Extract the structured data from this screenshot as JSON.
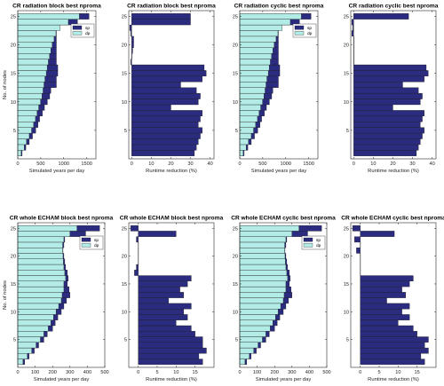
{
  "colors": {
    "sp": "#2b2b7f",
    "dp": "#b3ece6",
    "edge": "#1a1a1a"
  },
  "legend": [
    "sp",
    "dp"
  ],
  "chart_data": [
    {
      "type": "bar",
      "orientation": "horizontal",
      "stacked": "overlay",
      "title": "CR radiation block best nproma",
      "xlabel": "Simulated years per day",
      "ylabel": "No. of nodes",
      "xlim": [
        0,
        1700
      ],
      "xticks": [
        0,
        500,
        1000,
        1500
      ],
      "ylim": [
        0,
        26
      ],
      "yticks": [
        5,
        10,
        15,
        20,
        25
      ],
      "nodes": [
        1,
        2,
        3,
        4,
        5,
        6,
        7,
        8,
        9,
        10,
        11,
        12,
        13,
        14,
        15,
        16,
        17,
        18,
        19,
        20,
        21,
        22,
        23,
        24,
        25
      ],
      "series": [
        {
          "name": "sp",
          "values": [
            95,
            175,
            250,
            320,
            390,
            440,
            475,
            535,
            580,
            645,
            695,
            720,
            840,
            840,
            870,
            870,
            840,
            840,
            840,
            840,
            840,
            840,
            840,
            1300,
            1550
          ]
        },
        {
          "name": "dp",
          "values": [
            75,
            140,
            190,
            250,
            300,
            345,
            385,
            420,
            455,
            495,
            525,
            550,
            570,
            590,
            620,
            640,
            665,
            690,
            720,
            750,
            790,
            830,
            920,
            1100,
            1340
          ]
        }
      ]
    },
    {
      "type": "bar",
      "orientation": "horizontal",
      "title": "CR radiation block best nproma",
      "xlabel": "Runtime reduction (%)",
      "ylabel": "",
      "xlim": [
        -1.5,
        42
      ],
      "xticks": [
        0,
        10,
        20,
        30,
        40
      ],
      "ylim": [
        0,
        26
      ],
      "yticks": [
        5,
        10,
        15,
        20,
        25
      ],
      "nodes": [
        1,
        2,
        3,
        4,
        5,
        6,
        7,
        8,
        9,
        10,
        11,
        12,
        13,
        14,
        15,
        16,
        17,
        18,
        19,
        20,
        21,
        22,
        23,
        24,
        25
      ],
      "values": [
        32,
        33,
        34,
        35,
        36,
        34,
        35,
        36,
        20,
        34,
        35,
        33,
        25,
        36,
        38,
        37,
        -0.5,
        0,
        0.5,
        1,
        1,
        -0.5,
        -1,
        30,
        30
      ]
    },
    {
      "type": "bar",
      "orientation": "horizontal",
      "stacked": "overlay",
      "title": "CR radiation cyclic best nproma",
      "xlabel": "Simulated years per day",
      "ylabel": "",
      "xlim": [
        0,
        1700
      ],
      "xticks": [
        0,
        500,
        1000,
        1500
      ],
      "ylim": [
        0,
        26
      ],
      "yticks": [
        5,
        10,
        15,
        20,
        25
      ],
      "nodes": [
        1,
        2,
        3,
        4,
        5,
        6,
        7,
        8,
        9,
        10,
        11,
        12,
        13,
        14,
        15,
        16,
        17,
        18,
        19,
        20,
        21,
        22,
        23,
        24,
        25
      ],
      "series": [
        {
          "name": "sp",
          "values": [
            95,
            175,
            250,
            320,
            390,
            440,
            475,
            535,
            580,
            645,
            695,
            720,
            840,
            840,
            870,
            870,
            840,
            840,
            840,
            840,
            840,
            840,
            840,
            1300,
            1550
          ]
        },
        {
          "name": "dp",
          "values": [
            75,
            140,
            190,
            250,
            300,
            345,
            385,
            420,
            455,
            495,
            525,
            550,
            570,
            590,
            620,
            640,
            665,
            690,
            720,
            750,
            790,
            830,
            920,
            1100,
            1340
          ]
        }
      ]
    },
    {
      "type": "bar",
      "orientation": "horizontal",
      "title": "CR radiation cyclic best nproma",
      "xlabel": "Runtime reduction (%)",
      "ylabel": "",
      "xlim": [
        -1.5,
        42
      ],
      "xticks": [
        0,
        10,
        20,
        30,
        40
      ],
      "ylim": [
        0,
        26
      ],
      "yticks": [
        5,
        10,
        15,
        20,
        25
      ],
      "nodes": [
        1,
        2,
        3,
        4,
        5,
        6,
        7,
        8,
        9,
        10,
        11,
        12,
        13,
        14,
        15,
        16,
        17,
        18,
        19,
        20,
        21,
        22,
        23,
        24,
        25
      ],
      "values": [
        32,
        33,
        34,
        35,
        36,
        34,
        35,
        36,
        20,
        34,
        35,
        33,
        25,
        36,
        38,
        37,
        0,
        0,
        0,
        0,
        0,
        -1,
        -0.5,
        -1,
        28
      ]
    },
    {
      "type": "bar",
      "orientation": "horizontal",
      "stacked": "overlay",
      "title": "CR whole ECHAM block best nproma",
      "xlabel": "Simulated years per day",
      "ylabel": "No. of nodes",
      "xlim": [
        0,
        500
      ],
      "xticks": [
        0,
        100,
        200,
        300,
        400,
        500
      ],
      "ylim": [
        0,
        26
      ],
      "yticks": [
        5,
        10,
        15,
        20,
        25
      ],
      "nodes": [
        1,
        2,
        3,
        4,
        5,
        6,
        7,
        8,
        9,
        10,
        11,
        12,
        13,
        14,
        15,
        16,
        17,
        18,
        19,
        20,
        21,
        22,
        23,
        24,
        25
      ],
      "series": [
        {
          "name": "sp",
          "values": [
            40,
            65,
            95,
            120,
            150,
            170,
            200,
            215,
            230,
            250,
            265,
            280,
            300,
            295,
            285,
            290,
            285,
            275,
            270,
            265,
            260,
            265,
            270,
            390,
            470
          ]
        },
        {
          "name": "dp",
          "values": [
            30,
            55,
            80,
            105,
            130,
            150,
            175,
            190,
            205,
            220,
            235,
            250,
            255,
            265,
            265,
            275,
            270,
            265,
            262,
            260,
            258,
            258,
            265,
            300,
            340
          ]
        }
      ]
    },
    {
      "type": "bar",
      "orientation": "horizontal",
      "title": "CR whole ECHAM block best nproma",
      "xlabel": "Runtime reduction (%)",
      "ylabel": "",
      "xlim": [
        -2.5,
        20
      ],
      "xticks": [
        0,
        5,
        10,
        15
      ],
      "ylim": [
        0,
        26
      ],
      "yticks": [
        5,
        10,
        15,
        20,
        25
      ],
      "nodes": [
        1,
        2,
        3,
        4,
        5,
        6,
        7,
        8,
        9,
        10,
        11,
        12,
        13,
        14,
        15,
        16,
        17,
        18,
        19,
        20,
        21,
        22,
        23,
        24,
        25
      ],
      "values": [
        17,
        16,
        18,
        17,
        17,
        15,
        14,
        10,
        13,
        12,
        14,
        8,
        12,
        11,
        13,
        14,
        -1,
        -0.5,
        0,
        0,
        0,
        0,
        -0.5,
        10,
        -2
      ]
    },
    {
      "type": "bar",
      "orientation": "horizontal",
      "stacked": "overlay",
      "title": "CR whole ECHAM cyclic best nproma",
      "xlabel": "Simulated years per day",
      "ylabel": "",
      "xlim": [
        0,
        500
      ],
      "xticks": [
        0,
        100,
        200,
        300,
        400,
        500
      ],
      "ylim": [
        0,
        26
      ],
      "yticks": [
        5,
        10,
        15,
        20,
        25
      ],
      "nodes": [
        1,
        2,
        3,
        4,
        5,
        6,
        7,
        8,
        9,
        10,
        11,
        12,
        13,
        14,
        15,
        16,
        17,
        18,
        19,
        20,
        21,
        22,
        23,
        24,
        25
      ],
      "series": [
        {
          "name": "sp",
          "values": [
            40,
            65,
            95,
            120,
            150,
            170,
            200,
            215,
            230,
            250,
            265,
            280,
            300,
            295,
            285,
            290,
            285,
            275,
            270,
            265,
            260,
            265,
            270,
            390,
            470
          ]
        },
        {
          "name": "dp",
          "values": [
            30,
            55,
            80,
            105,
            130,
            150,
            175,
            190,
            205,
            220,
            235,
            250,
            255,
            265,
            265,
            275,
            270,
            265,
            262,
            260,
            258,
            258,
            265,
            300,
            340
          ]
        }
      ]
    },
    {
      "type": "bar",
      "orientation": "horizontal",
      "title": "CR whole ECHAM cyclic best nproma",
      "xlabel": "Runtime reduction (%)",
      "ylabel": "",
      "xlim": [
        -2.5,
        20
      ],
      "xticks": [
        0,
        5,
        10,
        15
      ],
      "ylim": [
        0,
        26
      ],
      "yticks": [
        5,
        10,
        15,
        20,
        25
      ],
      "nodes": [
        1,
        2,
        3,
        4,
        5,
        6,
        7,
        8,
        9,
        10,
        11,
        12,
        13,
        14,
        15,
        16,
        17,
        18,
        19,
        20,
        21,
        22,
        23,
        24,
        25
      ],
      "values": [
        17,
        16,
        18,
        17,
        18,
        15,
        14,
        10,
        13,
        11,
        13,
        7,
        12,
        11,
        13,
        14,
        0,
        0,
        0,
        0,
        -1,
        0,
        -1.5,
        9,
        -2
      ]
    }
  ]
}
